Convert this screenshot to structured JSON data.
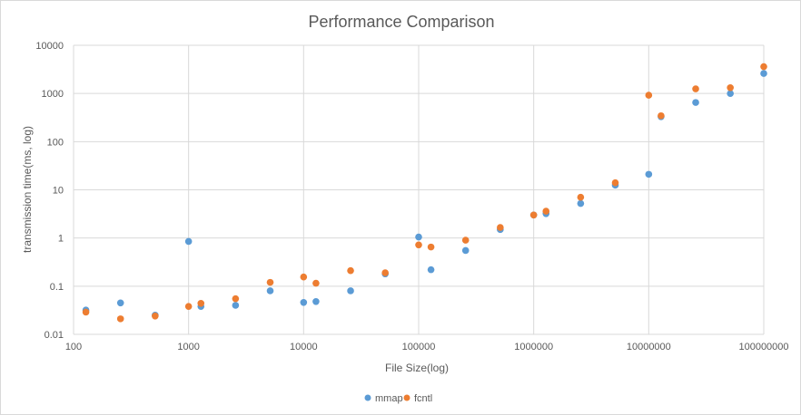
{
  "chart_data": {
    "type": "scatter",
    "title": "Performance Comparison",
    "xlabel": "File Size(log)",
    "ylabel": "transmission time(ms, log)",
    "x_scale": "log",
    "y_scale": "log",
    "xlim": [
      100,
      100000000
    ],
    "ylim": [
      0.01,
      10000
    ],
    "x_ticks": [
      "100",
      "1000",
      "10000",
      "100000",
      "1000000",
      "10000000",
      "100000000"
    ],
    "y_ticks": [
      "0.01",
      "0.1",
      "1",
      "10",
      "100",
      "1000",
      "10000"
    ],
    "grid": "vertical and horizontal major gridlines",
    "legend_position": "bottom",
    "series": [
      {
        "name": "mmap",
        "color": "#5b9bd5",
        "points": [
          [
            128,
            0.032
          ],
          [
            256,
            0.045
          ],
          [
            512,
            0.025
          ],
          [
            1000,
            0.85
          ],
          [
            1280,
            0.038
          ],
          [
            2560,
            0.04
          ],
          [
            5120,
            0.08
          ],
          [
            10000,
            0.046
          ],
          [
            12800,
            0.048
          ],
          [
            25600,
            0.08
          ],
          [
            51200,
            0.18
          ],
          [
            100000,
            1.05
          ],
          [
            128000,
            0.22
          ],
          [
            256000,
            0.55
          ],
          [
            512000,
            1.5
          ],
          [
            1000000,
            3.0
          ],
          [
            1280000,
            3.2
          ],
          [
            2560000,
            5.2
          ],
          [
            5120000,
            12.5
          ],
          [
            10000000,
            21
          ],
          [
            12800000,
            330
          ],
          [
            25600000,
            650
          ],
          [
            51200000,
            1000
          ],
          [
            100000000,
            2600
          ]
        ]
      },
      {
        "name": "fcntl",
        "color": "#ed7d31",
        "points": [
          [
            128,
            0.029
          ],
          [
            256,
            0.021
          ],
          [
            512,
            0.024
          ],
          [
            1000,
            0.038
          ],
          [
            1280,
            0.044
          ],
          [
            2560,
            0.055
          ],
          [
            5120,
            0.12
          ],
          [
            10000,
            0.155
          ],
          [
            12800,
            0.115
          ],
          [
            25600,
            0.21
          ],
          [
            51200,
            0.19
          ],
          [
            100000,
            0.72
          ],
          [
            128000,
            0.65
          ],
          [
            256000,
            0.9
          ],
          [
            512000,
            1.65
          ],
          [
            1000000,
            3.0
          ],
          [
            1280000,
            3.6
          ],
          [
            2560000,
            7.0
          ],
          [
            5120000,
            14
          ],
          [
            10000000,
            920
          ],
          [
            12800000,
            345
          ],
          [
            25600000,
            1250
          ],
          [
            51200000,
            1320
          ],
          [
            100000000,
            3600
          ]
        ]
      }
    ]
  }
}
